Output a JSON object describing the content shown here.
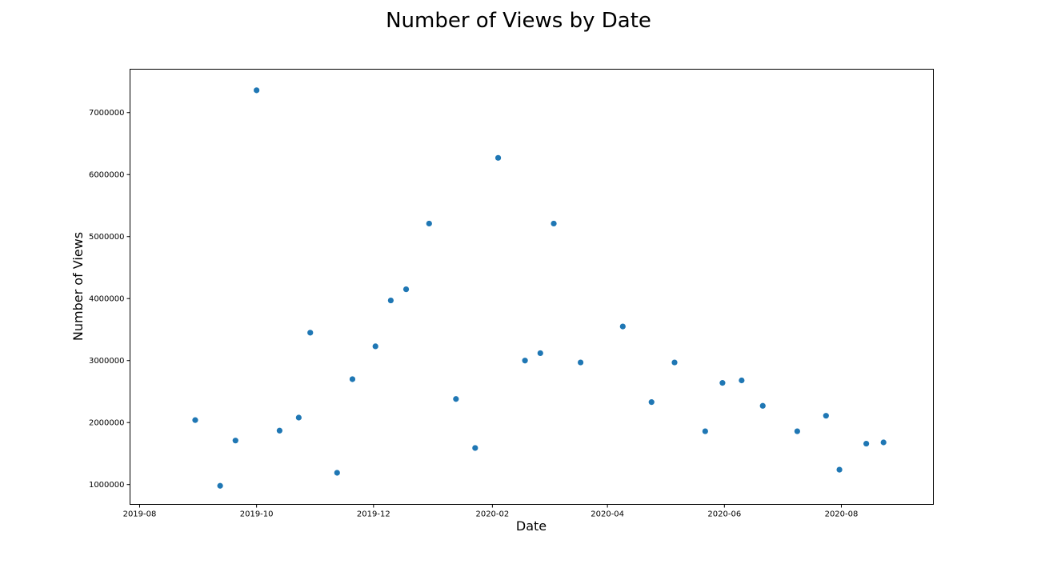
{
  "chart_data": {
    "type": "scatter",
    "title": "Number of Views by Date",
    "xlabel": "Date",
    "ylabel": "Number of Views",
    "x_ticks": [
      "2019-08",
      "2019-10",
      "2019-12",
      "2020-02",
      "2020-04",
      "2020-06",
      "2020-08"
    ],
    "y_ticks": [
      "1000000",
      "2000000",
      "3000000",
      "4000000",
      "5000000",
      "6000000",
      "7000000"
    ],
    "xlim": [
      "2019-07-27",
      "2020-09-18"
    ],
    "ylim": [
      680000,
      7700000
    ],
    "grid": false,
    "marker_color": "#1f77b4",
    "series": [
      {
        "points": [
          {
            "x": "2019-08-30",
            "y": 2040000
          },
          {
            "x": "2019-09-12",
            "y": 980000
          },
          {
            "x": "2019-09-20",
            "y": 1710000
          },
          {
            "x": "2019-10-01",
            "y": 7360000
          },
          {
            "x": "2019-10-13",
            "y": 1870000
          },
          {
            "x": "2019-10-23",
            "y": 2080000
          },
          {
            "x": "2019-10-29",
            "y": 3450000
          },
          {
            "x": "2019-11-12",
            "y": 1190000
          },
          {
            "x": "2019-11-20",
            "y": 2700000
          },
          {
            "x": "2019-12-02",
            "y": 3230000
          },
          {
            "x": "2019-12-10",
            "y": 3970000
          },
          {
            "x": "2019-12-18",
            "y": 4150000
          },
          {
            "x": "2019-12-30",
            "y": 5210000
          },
          {
            "x": "2020-01-13",
            "y": 2380000
          },
          {
            "x": "2020-01-23",
            "y": 1590000
          },
          {
            "x": "2020-02-04",
            "y": 6270000
          },
          {
            "x": "2020-02-18",
            "y": 3000000
          },
          {
            "x": "2020-02-26",
            "y": 3120000
          },
          {
            "x": "2020-03-04",
            "y": 5210000
          },
          {
            "x": "2020-03-18",
            "y": 2970000
          },
          {
            "x": "2020-04-09",
            "y": 3550000
          },
          {
            "x": "2020-04-24",
            "y": 2330000
          },
          {
            "x": "2020-05-06",
            "y": 2970000
          },
          {
            "x": "2020-05-22",
            "y": 1860000
          },
          {
            "x": "2020-05-31",
            "y": 2640000
          },
          {
            "x": "2020-06-10",
            "y": 2680000
          },
          {
            "x": "2020-06-21",
            "y": 2270000
          },
          {
            "x": "2020-07-09",
            "y": 1860000
          },
          {
            "x": "2020-07-24",
            "y": 2110000
          },
          {
            "x": "2020-07-31",
            "y": 1240000
          },
          {
            "x": "2020-08-14",
            "y": 1660000
          },
          {
            "x": "2020-08-23",
            "y": 1680000
          }
        ]
      }
    ]
  }
}
